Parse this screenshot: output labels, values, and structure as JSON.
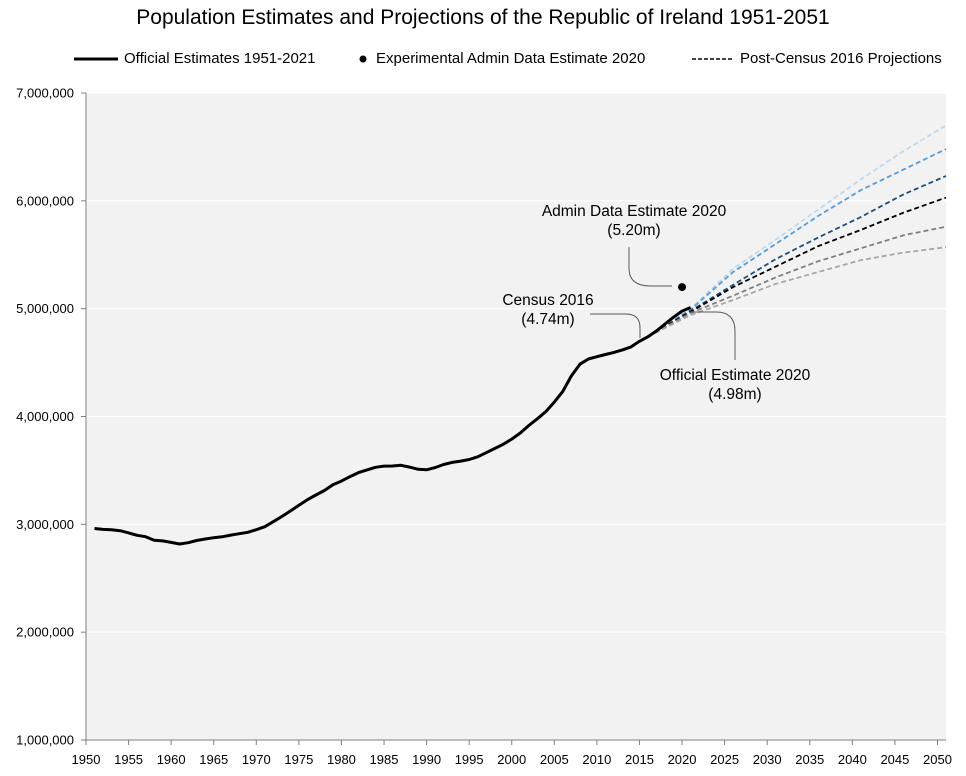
{
  "chart_data": {
    "type": "line",
    "title": "Population Estimates and Projections of the Republic of Ireland 1951-2051",
    "xlim": [
      1950,
      2051
    ],
    "ylim": [
      1000000,
      7000000
    ],
    "xticks": [
      "1950",
      "1955",
      "1960",
      "1965",
      "1970",
      "1975",
      "1980",
      "1985",
      "1990",
      "1995",
      "2000",
      "2005",
      "2010",
      "2015",
      "2020",
      "2025",
      "2030",
      "2035",
      "2040",
      "2045",
      "2050"
    ],
    "yticks": [
      "1,000,000",
      "2,000,000",
      "3,000,000",
      "4,000,000",
      "5,000,000",
      "6,000,000",
      "7,000,000"
    ],
    "grid": "horizontal",
    "legend_position": "top",
    "legend": {
      "official": "Official Estimates 1951-2021",
      "admin": "Experimental Admin Data Estimate 2020",
      "projections": "Post-Census 2016 Projections"
    },
    "official": {
      "x": [
        1951,
        1952,
        1953,
        1954,
        1955,
        1956,
        1957,
        1958,
        1959,
        1960,
        1961,
        1962,
        1963,
        1964,
        1965,
        1966,
        1967,
        1968,
        1969,
        1970,
        1971,
        1972,
        1973,
        1974,
        1975,
        1976,
        1977,
        1978,
        1979,
        1980,
        1981,
        1982,
        1983,
        1984,
        1985,
        1986,
        1987,
        1988,
        1989,
        1990,
        1991,
        1992,
        1993,
        1994,
        1995,
        1996,
        1997,
        1998,
        1999,
        2000,
        2001,
        2002,
        2003,
        2004,
        2005,
        2006,
        2007,
        2008,
        2009,
        2010,
        2011,
        2012,
        2013,
        2014,
        2015,
        2016,
        2017,
        2018,
        2019,
        2020,
        2021
      ],
      "y": [
        2961000,
        2953000,
        2949000,
        2941000,
        2921000,
        2898000,
        2885000,
        2853000,
        2846000,
        2832000,
        2818000,
        2830000,
        2850000,
        2864000,
        2876000,
        2884000,
        2900000,
        2913000,
        2926000,
        2950000,
        2978000,
        3024000,
        3073000,
        3124000,
        3177000,
        3228000,
        3272000,
        3314000,
        3368000,
        3401000,
        3443000,
        3480000,
        3505000,
        3529000,
        3540000,
        3541000,
        3547000,
        3531000,
        3510000,
        3506000,
        3526000,
        3555000,
        3574000,
        3586000,
        3601000,
        3626000,
        3664000,
        3703000,
        3742000,
        3790000,
        3847000,
        3917000,
        3979000,
        4045000,
        4134000,
        4233000,
        4376000,
        4485000,
        4533000,
        4555000,
        4575000,
        4594000,
        4618000,
        4645000,
        4697000,
        4740000,
        4794000,
        4858000,
        4921000,
        4977000,
        5011000
      ],
      "color": "#000000"
    },
    "admin_estimate": {
      "x": 2020,
      "y": 5200000,
      "color": "#000000"
    },
    "projections": [
      {
        "x": [
          2016,
          2021,
          2026,
          2031,
          2036,
          2041,
          2046,
          2051
        ],
        "y": [
          4740000,
          5000000,
          5370000,
          5640000,
          5920000,
          6200000,
          6460000,
          6700000
        ],
        "color": "#bdd7ee"
      },
      {
        "x": [
          2016,
          2021,
          2026,
          2031,
          2036,
          2041,
          2046,
          2051
        ],
        "y": [
          4740000,
          4990000,
          5340000,
          5600000,
          5860000,
          6100000,
          6290000,
          6480000
        ],
        "color": "#5b9bd5"
      },
      {
        "x": [
          2016,
          2021,
          2026,
          2031,
          2036,
          2041,
          2046,
          2051
        ],
        "y": [
          4740000,
          4980000,
          5220000,
          5460000,
          5660000,
          5850000,
          6060000,
          6230000
        ],
        "color": "#1f4e79"
      },
      {
        "x": [
          2016,
          2021,
          2026,
          2031,
          2036,
          2041,
          2046,
          2051
        ],
        "y": [
          4740000,
          4970000,
          5200000,
          5390000,
          5580000,
          5730000,
          5890000,
          6030000
        ],
        "color": "#000000"
      },
      {
        "x": [
          2016,
          2021,
          2026,
          2031,
          2036,
          2041,
          2046,
          2051
        ],
        "y": [
          4740000,
          4960000,
          5120000,
          5290000,
          5440000,
          5560000,
          5680000,
          5760000
        ],
        "color": "#7f7f7f"
      },
      {
        "x": [
          2016,
          2021,
          2026,
          2031,
          2036,
          2041,
          2046,
          2051
        ],
        "y": [
          4740000,
          4940000,
          5080000,
          5230000,
          5340000,
          5450000,
          5520000,
          5570000
        ],
        "color": "#a6a6a6"
      }
    ],
    "annotations": [
      {
        "id": "admin",
        "lines": [
          "Admin Data Estimate 2020",
          "(5.20m)"
        ]
      },
      {
        "id": "census",
        "lines": [
          "Census 2016",
          "(4.74m)"
        ]
      },
      {
        "id": "official2020",
        "lines": [
          "Official Estimate 2020",
          "(4.98m)"
        ]
      }
    ]
  }
}
